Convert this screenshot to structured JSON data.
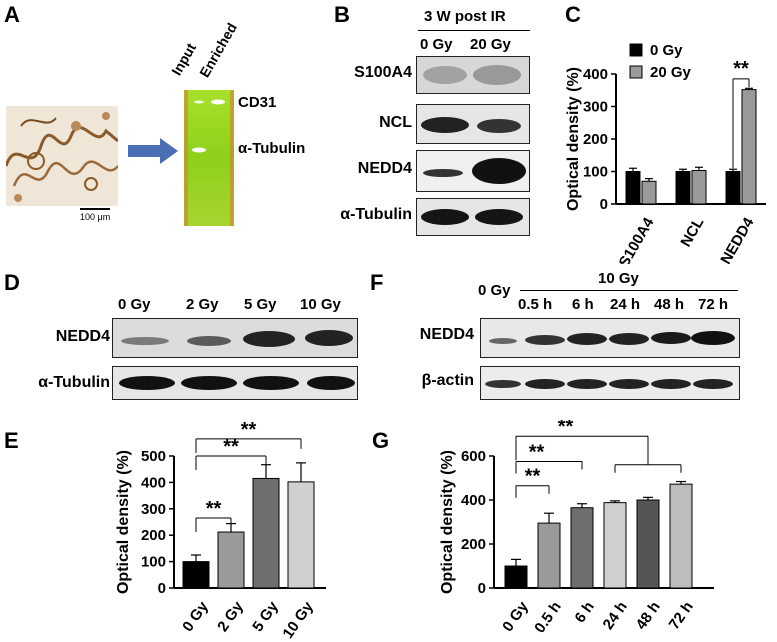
{
  "panels": {
    "A": {
      "letter": "A",
      "scale_bar": "100 μm",
      "gel_lanes": [
        "Input",
        "Enriched"
      ],
      "gel_bands": [
        "CD31",
        "α-Tubulin"
      ]
    },
    "B": {
      "letter": "B",
      "header": "3 W post IR",
      "lanes": [
        "0 Gy",
        "20 Gy"
      ],
      "rows": [
        "S100A4",
        "NCL",
        "NEDD4",
        "α-Tubulin"
      ]
    },
    "C": {
      "letter": "C"
    },
    "D": {
      "letter": "D",
      "lanes": [
        "0 Gy",
        "2 Gy",
        "5 Gy",
        "10 Gy"
      ],
      "rows": [
        "NEDD4",
        "α-Tubulin"
      ]
    },
    "E": {
      "letter": "E"
    },
    "F": {
      "letter": "F",
      "header": "10 Gy",
      "lanes": [
        "0 Gy",
        "0.5 h",
        "6 h",
        "24 h",
        "48 h",
        "72 h"
      ],
      "rows": [
        "NEDD4",
        "β-actin"
      ]
    },
    "G": {
      "letter": "G"
    }
  },
  "colors": {
    "black": "#000000",
    "gray": "#9a9a9a",
    "dark_gray": "#6e6e6e",
    "light_gray": "#d0d0d0",
    "mid_gray": "#555555"
  },
  "chart_data": [
    {
      "id": "C",
      "type": "bar",
      "ylabel": "Optical density (%)",
      "categories": [
        "S100A4",
        "NCL",
        "NEDD4"
      ],
      "ylim": [
        0,
        400
      ],
      "yticks": [
        0,
        100,
        200,
        300,
        400
      ],
      "series": [
        {
          "name": "0 Gy",
          "color": "#000000",
          "values": [
            100,
            100,
            100
          ],
          "errors": [
            10,
            7,
            7
          ]
        },
        {
          "name": "20 Gy",
          "color": "#9a9a9a",
          "values": [
            70,
            103,
            352
          ],
          "errors": [
            8,
            10,
            4
          ]
        }
      ],
      "legend_position": "top-left",
      "annotations": [
        {
          "text": "**",
          "category": "NEDD4"
        }
      ]
    },
    {
      "id": "E",
      "type": "bar",
      "ylabel": "Optical density (%)",
      "categories": [
        "0 Gy",
        "2 Gy",
        "5 Gy",
        "10 Gy"
      ],
      "ylim": [
        0,
        500
      ],
      "yticks": [
        0,
        100,
        200,
        300,
        400,
        500
      ],
      "values": [
        100,
        212,
        415,
        402
      ],
      "errors": [
        25,
        32,
        52,
        72
      ],
      "colors": [
        "#000000",
        "#9a9a9a",
        "#6e6e6e",
        "#d0d0d0"
      ],
      "annotations": [
        {
          "text": "**",
          "from": 0,
          "to": 1
        },
        {
          "text": "**",
          "from": 0,
          "to": 2
        },
        {
          "text": "**",
          "from": 0,
          "to": 3
        }
      ]
    },
    {
      "id": "G",
      "type": "bar",
      "ylabel": "Optical density (%)",
      "categories": [
        "0 Gy",
        "0.5 h",
        "6 h",
        "24 h",
        "48 h",
        "72 h"
      ],
      "ylim": [
        0,
        600
      ],
      "yticks": [
        0,
        200,
        400,
        600
      ],
      "values": [
        100,
        295,
        365,
        388,
        400,
        472
      ],
      "errors": [
        30,
        45,
        18,
        8,
        12,
        12
      ],
      "colors": [
        "#000000",
        "#9a9a9a",
        "#6e6e6e",
        "#d0d0d0",
        "#555555",
        "#bdbdbd"
      ],
      "annotations": [
        {
          "text": "**",
          "from": 0,
          "to": 1
        },
        {
          "text": "**",
          "from": 0,
          "to": 2
        },
        {
          "text": "**",
          "from": 0,
          "to": "3-5"
        }
      ]
    }
  ]
}
